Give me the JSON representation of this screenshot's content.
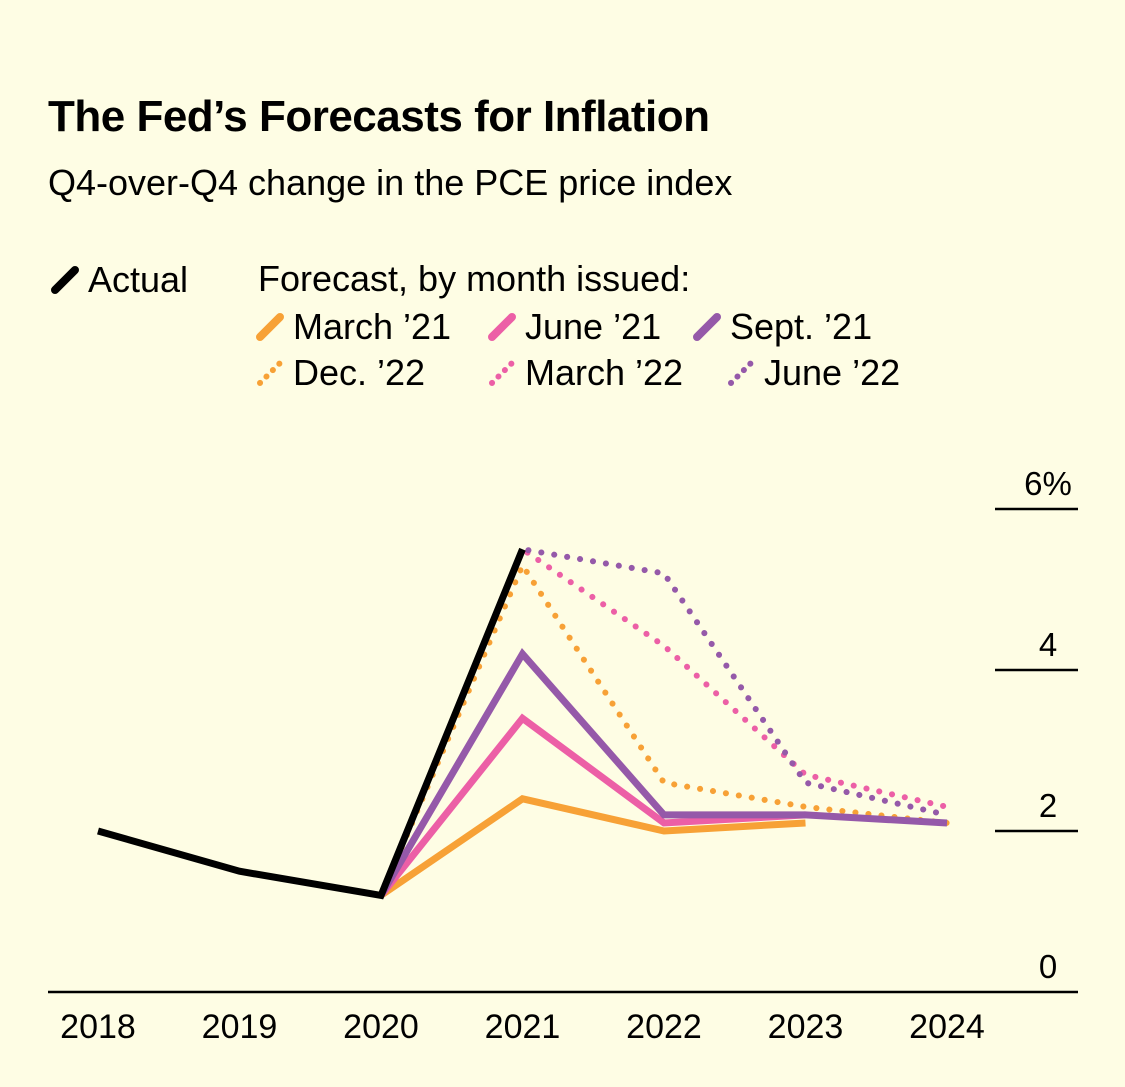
{
  "chart_data": {
    "type": "line",
    "title": "The Fed’s Forecasts for Inflation",
    "subtitle": "Q4-over-Q4 change in the PCE price index",
    "legend_heading": "Forecast, by month issued:",
    "x": [
      2018,
      2019,
      2020,
      2021,
      2022,
      2023,
      2024
    ],
    "x_tick_labels": [
      "2018",
      "2019",
      "2020",
      "2021",
      "2022",
      "2023",
      "2024"
    ],
    "y_ticks": [
      0,
      2,
      4,
      6
    ],
    "y_tick_labels": [
      "0",
      "2",
      "4",
      "6%"
    ],
    "ylim": [
      0,
      6
    ],
    "xlabel": "",
    "ylabel": "",
    "series": [
      {
        "name": "Actual",
        "color": "#000000",
        "style": "solid",
        "x": [
          2018,
          2019,
          2020,
          2021
        ],
        "values": [
          2.0,
          1.5,
          1.2,
          5.5
        ]
      },
      {
        "name": "March ’21",
        "color": "#f7a136",
        "style": "solid",
        "x": [
          2020,
          2021,
          2022,
          2023
        ],
        "values": [
          1.2,
          2.4,
          2.0,
          2.1
        ]
      },
      {
        "name": "June ’21",
        "color": "#ec5fa6",
        "style": "solid",
        "x": [
          2020,
          2021,
          2022,
          2023
        ],
        "values": [
          1.2,
          3.4,
          2.1,
          2.2
        ]
      },
      {
        "name": "Sept. ’21",
        "color": "#9559a9",
        "style": "solid",
        "x": [
          2020,
          2021,
          2022,
          2023,
          2024
        ],
        "values": [
          1.2,
          4.2,
          2.2,
          2.2,
          2.1
        ]
      },
      {
        "name": "Dec. ’22",
        "color": "#f7a136",
        "style": "dotted",
        "x": [
          2020,
          2021,
          2022,
          2023,
          2024
        ],
        "values": [
          1.2,
          5.3,
          2.6,
          2.3,
          2.1
        ]
      },
      {
        "name": "March ’22",
        "color": "#ec5fa6",
        "style": "dotted",
        "x": [
          2020,
          2021,
          2022,
          2023,
          2024
        ],
        "values": [
          1.2,
          5.5,
          4.3,
          2.7,
          2.3
        ]
      },
      {
        "name": "June ’22",
        "color": "#9559a9",
        "style": "dotted",
        "x": [
          2020,
          2021,
          2022,
          2023,
          2024
        ],
        "values": [
          1.2,
          5.5,
          5.2,
          2.6,
          2.2
        ]
      }
    ]
  }
}
